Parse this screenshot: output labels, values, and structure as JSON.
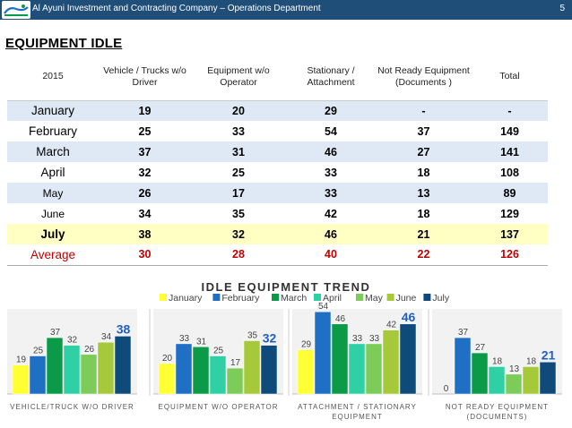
{
  "header": {
    "company_title": "Al Ayuni Investment and Contracting Company – Operations Department",
    "slide_number": "5",
    "logo_text": "العيوني"
  },
  "page_title": "EQUIPMENT IDLE",
  "table": {
    "headers": [
      "2015",
      "Vehicle / Trucks w/o Driver",
      "Equipment w/o Operator",
      "Stationary / Attachment",
      "Not Ready Equipment (Documents )",
      "Total"
    ],
    "rows": [
      {
        "month": "January",
        "values": [
          "19",
          "20",
          "29",
          "-",
          "-"
        ]
      },
      {
        "month": "February",
        "values": [
          "25",
          "33",
          "54",
          "37",
          "149"
        ]
      },
      {
        "month": "March",
        "values": [
          "37",
          "31",
          "46",
          "27",
          "141"
        ]
      },
      {
        "month": "April",
        "values": [
          "32",
          "25",
          "33",
          "18",
          "108"
        ]
      },
      {
        "month": "May",
        "values": [
          "26",
          "17",
          "33",
          "13",
          "89"
        ]
      },
      {
        "month": "June",
        "values": [
          "34",
          "35",
          "42",
          "18",
          "129"
        ]
      },
      {
        "month": "July",
        "values": [
          "38",
          "32",
          "46",
          "21",
          "137"
        ]
      },
      {
        "month": "Average",
        "values": [
          "30",
          "28",
          "40",
          "22",
          "126"
        ]
      }
    ]
  },
  "chart_data": {
    "type": "bar",
    "title": "IDLE EQUIPMENT TREND",
    "legend_position": "top",
    "categories": [
      "VEHICLE/TRUCK W/O DRIVER",
      "EQUIPMENT W/O OPERATOR",
      "ATTACHMENT / STATIONARY EQUIPMENT",
      "NOT READY EQUIPMENT (DOCUMENTS)"
    ],
    "series": [
      {
        "name": "January",
        "color": "#ffff33",
        "values": [
          19,
          20,
          29,
          0
        ]
      },
      {
        "name": "February",
        "color": "#1f6fc5",
        "values": [
          25,
          33,
          54,
          37
        ]
      },
      {
        "name": "March",
        "color": "#0b9a47",
        "values": [
          37,
          31,
          46,
          27
        ]
      },
      {
        "name": "April",
        "color": "#2fd0a4",
        "values": [
          32,
          25,
          33,
          18
        ]
      },
      {
        "name": "May",
        "color": "#7dcc5a",
        "values": [
          26,
          17,
          33,
          13
        ]
      },
      {
        "name": "June",
        "color": "#a6c93a",
        "values": [
          34,
          35,
          42,
          18
        ]
      },
      {
        "name": "July",
        "color": "#0e4a7a",
        "values": [
          38,
          32,
          46,
          21
        ]
      }
    ],
    "highlight_series": "July",
    "ylim": [
      0,
      60
    ],
    "grid": false
  }
}
